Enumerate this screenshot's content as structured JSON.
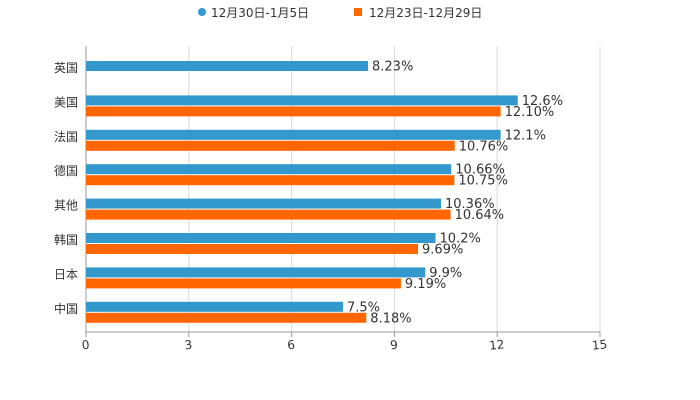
{
  "chart_data": {
    "type": "bar",
    "orientation": "horizontal",
    "categories": [
      "英国",
      "美国",
      "法国",
      "德国",
      "其他",
      "韩国",
      "日本",
      "中国"
    ],
    "series": [
      {
        "name": "12月30日-1月5日",
        "color": "#3399cc",
        "values": [
          8.23,
          12.6,
          12.1,
          10.66,
          10.36,
          10.2,
          9.9,
          7.5
        ],
        "labels": [
          "8.23%",
          "12.6%",
          "12.1%",
          "10.66%",
          "10.36%",
          "10.2%",
          "9.9%",
          "7.5%"
        ]
      },
      {
        "name": "12月23日-12月29日",
        "color": "#ff6600",
        "values": [
          null,
          12.1,
          10.76,
          10.75,
          10.64,
          9.69,
          9.19,
          8.18
        ],
        "labels": [
          "",
          "12.10%",
          "10.76%",
          "10.75%",
          "10.64%",
          "9.69%",
          "9.19%",
          "8.18%"
        ]
      }
    ],
    "xlim": [
      0,
      15
    ],
    "xticks": [
      "0",
      "3",
      "6",
      "9",
      "12",
      "15"
    ],
    "grid": true,
    "legend": "top-center",
    "title": "",
    "xlabel": "",
    "ylabel": ""
  }
}
